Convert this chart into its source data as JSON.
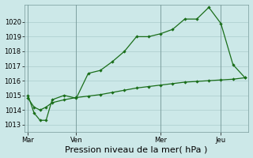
{
  "title": "Pression niveau de la mer( hPa )",
  "bg_color": "#cce8e8",
  "grid_color": "#aacccc",
  "line_color": "#1a6e1a",
  "ylim": [
    1012.5,
    1021.2
  ],
  "yticks": [
    1013,
    1014,
    1015,
    1016,
    1017,
    1018,
    1019,
    1020
  ],
  "xtick_labels": [
    "Mar",
    "Ven",
    "Mer",
    "Jeu"
  ],
  "xtick_positions": [
    0,
    4,
    11,
    16
  ],
  "vline_positions": [
    0,
    4,
    11,
    16
  ],
  "num_points": 21,
  "series1_x": [
    0,
    0.5,
    1.0,
    1.5,
    2.0,
    3.0,
    4.0,
    5.0,
    6.0,
    7.0,
    8.0,
    9.0,
    10.0,
    11.0,
    12.0,
    13.0,
    14.0,
    15.0,
    16.0,
    17.0,
    18.0
  ],
  "series1_y": [
    1015.0,
    1013.8,
    1013.3,
    1013.3,
    1014.7,
    1015.0,
    1014.8,
    1016.5,
    1016.7,
    1017.3,
    1018.0,
    1019.0,
    1019.0,
    1019.2,
    1019.5,
    1020.2,
    1020.2,
    1021.0,
    1019.9,
    1017.1,
    1016.2
  ],
  "series2_x": [
    0,
    0.5,
    1.0,
    1.5,
    2.0,
    3.0,
    4.0,
    5.0,
    6.0,
    7.0,
    8.0,
    9.0,
    10.0,
    11.0,
    12.0,
    13.0,
    14.0,
    15.0,
    16.0,
    17.0,
    18.0
  ],
  "series2_y": [
    1014.8,
    1014.2,
    1014.0,
    1014.2,
    1014.5,
    1014.7,
    1014.85,
    1014.95,
    1015.05,
    1015.2,
    1015.35,
    1015.5,
    1015.6,
    1015.7,
    1015.8,
    1015.9,
    1015.95,
    1016.0,
    1016.05,
    1016.1,
    1016.2
  ],
  "xlim": [
    -0.3,
    18.3
  ],
  "ylabel_fontsize": 6,
  "xlabel_fontsize": 8,
  "tick_fontsize": 6,
  "linewidth": 0.9,
  "markersize": 2.2
}
